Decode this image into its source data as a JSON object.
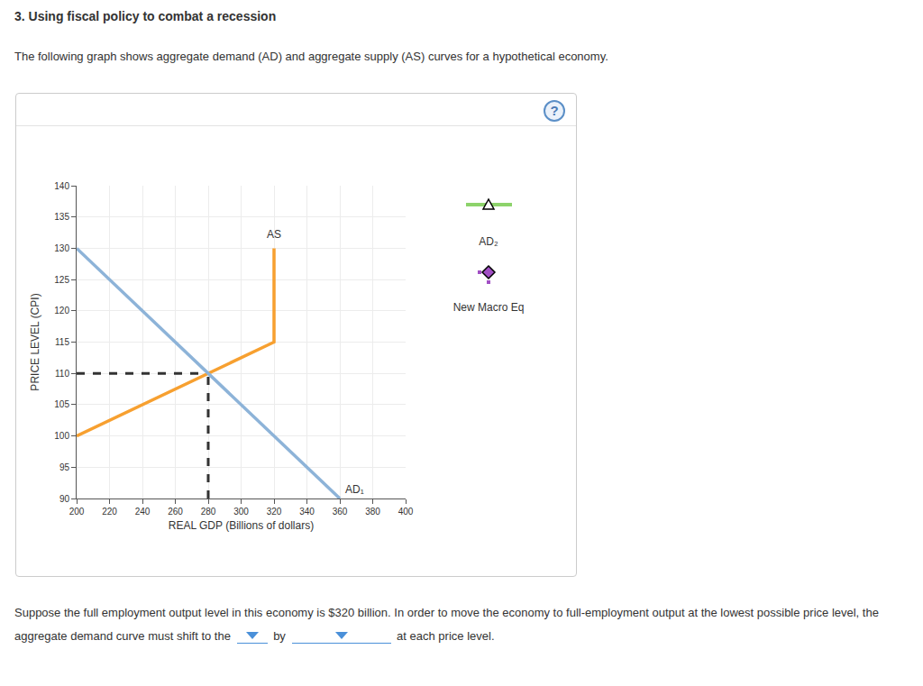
{
  "page": {
    "heading": "3. Using fiscal policy to combat a recession",
    "intro": "The following graph shows aggregate demand (AD) and aggregate supply (AS) curves for a hypothetical economy.",
    "help": "?",
    "palette": [
      {
        "label": "AD₂",
        "color": "#8dd36b",
        "marker": "triangle",
        "line_style": "solid"
      },
      {
        "label": "New Macro Eq",
        "color": "#a14fc4",
        "marker": "diamond",
        "line_style": "dotted"
      }
    ],
    "question": {
      "before": "Suppose the full employment output level in this economy is $320 billion. In order to move the economy to full-employment output at the lowest possible price level, the aggregate demand curve must shift to the",
      "middle": "by",
      "after": "at each price level."
    }
  },
  "chart_data": {
    "type": "line",
    "x_label": "REAL GDP (Billions of dollars)",
    "y_label": "PRICE LEVEL (CPI)",
    "xlim": [
      200,
      400
    ],
    "xticks": [
      200,
      220,
      240,
      260,
      280,
      300,
      320,
      340,
      360,
      380,
      400
    ],
    "ylim": [
      90,
      140
    ],
    "yticks": [
      90,
      95,
      100,
      105,
      110,
      115,
      120,
      125,
      130,
      135,
      140
    ],
    "grid": true,
    "series": [
      {
        "name": "AS",
        "color": "#f7a030",
        "x": [
          200,
          280,
          320,
          320
        ],
        "values": [
          100,
          110,
          115,
          130
        ]
      },
      {
        "name": "AD₁",
        "color": "#8db3d8",
        "x": [
          200,
          280,
          360
        ],
        "values": [
          130,
          110,
          90
        ]
      }
    ],
    "guides": [
      {
        "color": "#333333",
        "line_style": "dashed",
        "x": [
          200,
          280
        ],
        "values": [
          110,
          110
        ]
      },
      {
        "color": "#333333",
        "line_style": "dashed",
        "x": [
          280,
          280
        ],
        "values": [
          90,
          110
        ]
      }
    ]
  }
}
